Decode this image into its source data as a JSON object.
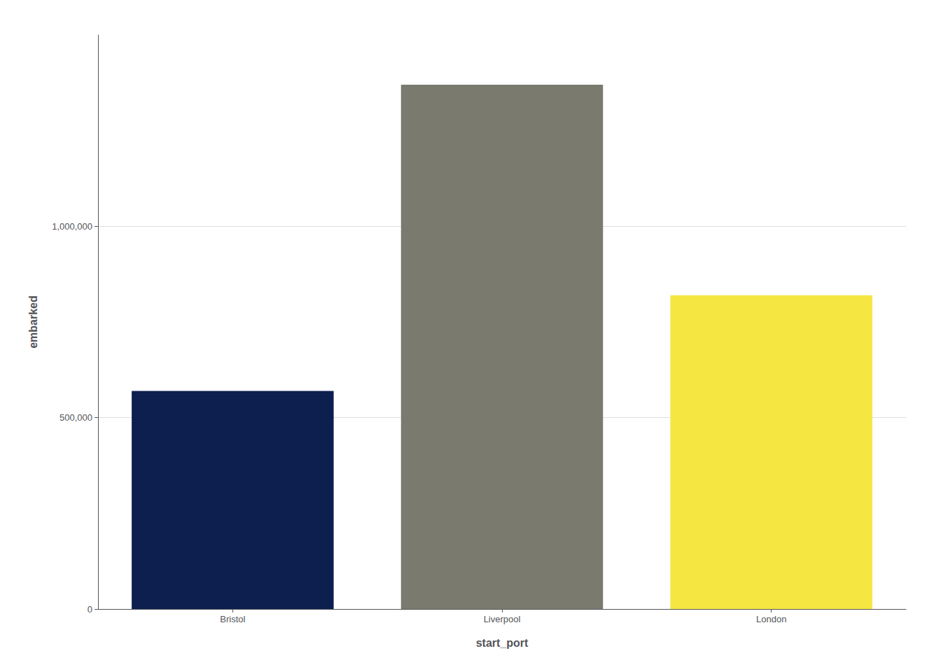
{
  "chart_data": {
    "type": "bar",
    "categories": [
      "Bristol",
      "Liverpool",
      "London"
    ],
    "values": [
      570000,
      1370000,
      820000
    ],
    "colors": [
      "#0d1f4e",
      "#7a7a6e",
      "#f5e642"
    ],
    "xlabel": "start_port",
    "ylabel": "embarked",
    "ylim": [
      0,
      1500000
    ],
    "yticks": [
      0,
      {
        "value": 500000,
        "label": "500,000"
      },
      {
        "value": 1000000,
        "label": "1,000,000"
      }
    ],
    "grid": true
  }
}
